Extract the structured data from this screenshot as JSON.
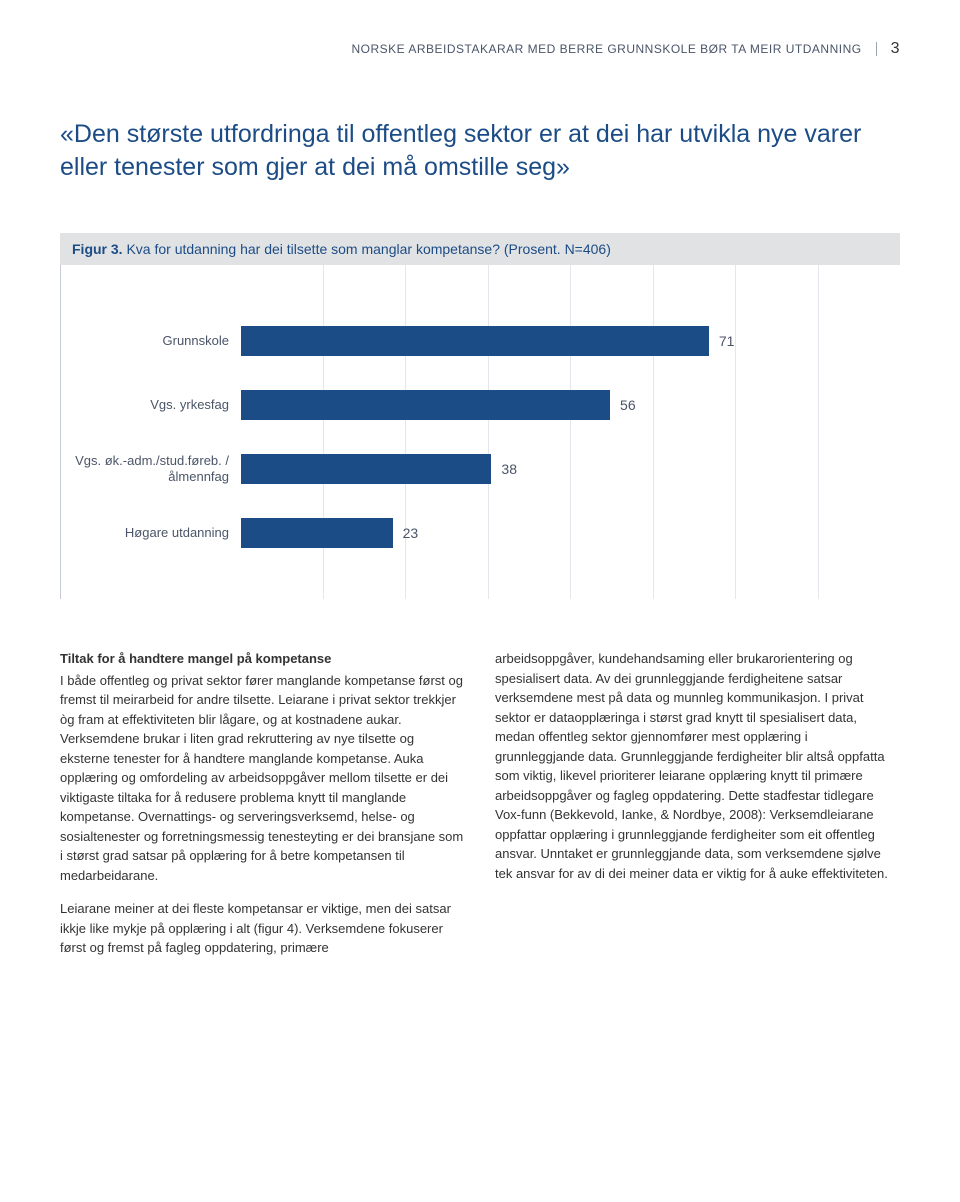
{
  "header": {
    "running_title": "NORSKE ARBEIDSTAKARAR MED BERRE GRUNNSKOLE BØR TA MEIR UTDANNING",
    "page_number": "3"
  },
  "pullquote": "«Den største utfordringa til offentleg sektor er at dei har utvikla nye varer eller tenester som gjer at dei må omstille seg»",
  "figure": {
    "label": "Figur 3.",
    "caption": "Kva for utdanning har dei tilsette som manglar kompetanse? (Prosent. N=406)",
    "type": "bar",
    "xlim": [
      0,
      100
    ],
    "gridlines": 8,
    "bar_color": "#1c4c86",
    "background_color": "#ffffff",
    "grid_color": "#e3e6ea",
    "label_fontsize": 13,
    "value_fontsize": 14,
    "bars": [
      {
        "label": "Grunnskole",
        "value": 71
      },
      {
        "label": "Vgs. yrkesfag",
        "value": 56
      },
      {
        "label": "Vgs. øk.-adm./stud.føreb. /ålmennfag",
        "value": 38
      },
      {
        "label": "Høgare utdanning",
        "value": 23
      }
    ]
  },
  "body": {
    "left": {
      "subhead": "Tiltak for å handtere mangel på kompetanse",
      "p1": "I både offentleg og privat sektor fører manglande kompetanse først og fremst til meirarbeid for andre tilsette. Leiarane i privat sektor trekkjer òg fram at effektiviteten blir lågare, og at kostnadene aukar. Verksemdene brukar i liten grad rekruttering av nye tilsette og eksterne tenester for å handtere manglande kompetanse. Auka opplæring og omfordeling av arbeidsoppgåver mellom tilsette er dei viktigaste tiltaka for å redusere problema knytt til manglande kompetanse. Overnattings- og serveringsverksemd, helse- og sosialtenester og forretningsmessig tenesteyting er dei bransjane som i størst grad satsar på opplæring for å betre kompetansen til medarbeidarane.",
      "p2": "Leiarane meiner at dei fleste kompetansar er viktige, men dei satsar ikkje like mykje på opplæring i alt (figur 4). Verksemdene fokuserer først og fremst på fagleg oppdatering, primære"
    },
    "right": {
      "p1": "arbeidsoppgåver, kundehandsaming eller brukarorientering og spesialisert data. Av dei grunnleggjande ferdigheitene satsar verksemdene mest på data og munnleg kommunikasjon. I privat sektor er dataopplæringa i størst grad knytt til spesialisert data, medan offentleg sektor gjennomfører mest opplæring i grunnleggjande data. Grunnleggjande ferdigheiter blir altså oppfatta som viktig, likevel prioriterer leiarane opplæring knytt til primære arbeidsoppgåver og fagleg oppdatering. Dette stadfestar tidlegare Vox-funn (Bekkevold, Ianke, & Nordbye, 2008): Verksemdleiarane oppfattar opplæring i grunnleggjande ferdigheiter som eit offentleg ansvar. Unntaket er grunnleggjande data, som verksemdene sjølve tek ansvar for av di dei meiner data er viktig for å auke effektiviteten."
    }
  },
  "colors": {
    "accent": "#1c4c86",
    "caption_bg": "#e1e2e4",
    "text": "#333333",
    "muted": "#4a5568"
  }
}
